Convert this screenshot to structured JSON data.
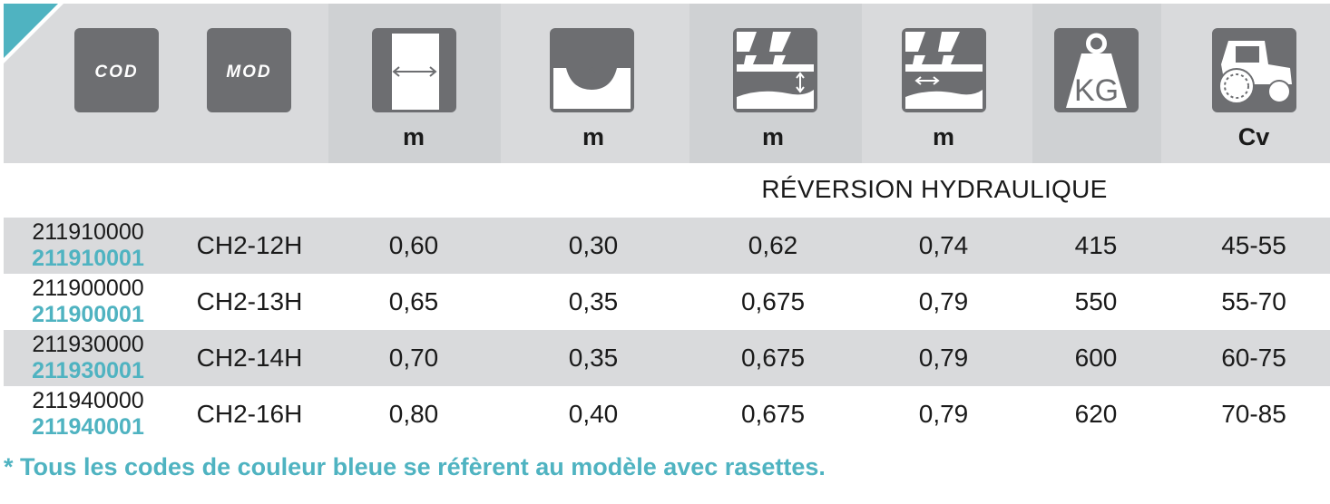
{
  "header": {
    "badges": {
      "cod": "COD",
      "mod": "MOD",
      "weight": "KG"
    },
    "icons": [
      "cod-badge",
      "mod-badge",
      "width-icon",
      "depth-icon",
      "reversal-height-icon",
      "reversal-width-icon",
      "weight-icon",
      "tractor-icon"
    ],
    "units": [
      "m",
      "m",
      "m",
      "m",
      "Cv"
    ]
  },
  "subtitle": "RÉVERSION HYDRAULIQUE",
  "rows": [
    {
      "code": "211910000",
      "code_alt": "211910001",
      "model": "CH2-12H",
      "v1": "0,60",
      "v2": "0,30",
      "v3": "0,62",
      "v4": "0,74",
      "weight": "415",
      "power": "45-55"
    },
    {
      "code": "211900000",
      "code_alt": "211900001",
      "model": "CH2-13H",
      "v1": "0,65",
      "v2": "0,35",
      "v3": "0,675",
      "v4": "0,79",
      "weight": "550",
      "power": "55-70"
    },
    {
      "code": "211930000",
      "code_alt": "211930001",
      "model": "CH2-14H",
      "v1": "0,70",
      "v2": "0,35",
      "v3": "0,675",
      "v4": "0,79",
      "weight": "600",
      "power": "60-75"
    },
    {
      "code": "211940000",
      "code_alt": "211940001",
      "model": "CH2-16H",
      "v1": "0,80",
      "v2": "0,40",
      "v3": "0,675",
      "v4": "0,79",
      "weight": "620",
      "power": "70-85"
    }
  ],
  "footnote": "* Tous les codes de couleur bleue se réfèrent au modèle avec rasettes.",
  "colors": {
    "accent": "#4fb3c1",
    "band": "#d9dadc",
    "tile": "#6d6e71"
  }
}
